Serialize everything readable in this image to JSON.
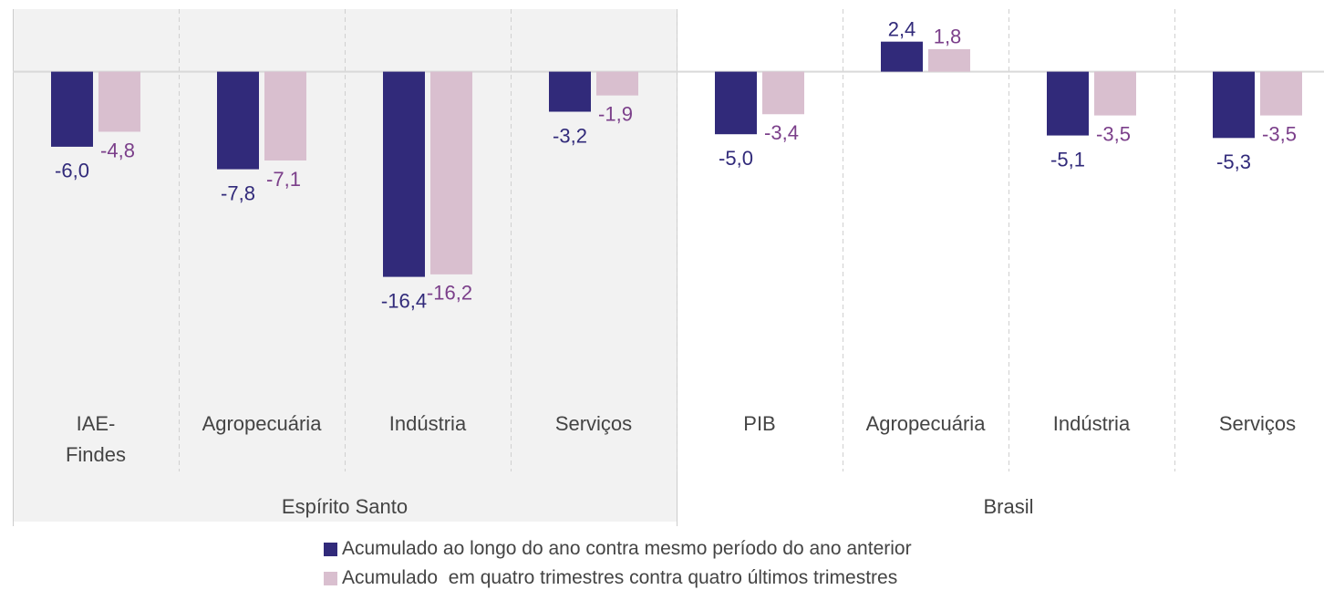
{
  "chart_data": {
    "type": "bar",
    "groups": [
      {
        "name": "Espírito Santo",
        "background": "#f2f2f2",
        "categories": [
          "IAE-Findes",
          "Agropecuária",
          "Indústria",
          "Serviços"
        ]
      },
      {
        "name": "Brasil",
        "categories": [
          "PIB",
          "Agropecuária",
          "Indústria",
          "Serviços"
        ]
      }
    ],
    "series": [
      {
        "name": "Acumulado ao longo do ano contra mesmo período do ano anterior",
        "color": "#312a7a",
        "label_color": "#312a7a",
        "values": [
          -6.0,
          -7.8,
          -16.4,
          -3.2,
          -5.0,
          2.4,
          -5.1,
          -5.3
        ],
        "value_labels": [
          "-6,0",
          "-7,8",
          "-16,4",
          "-3,2",
          "-5,0",
          "2,4",
          "-5,1",
          "-5,3"
        ]
      },
      {
        "name": "Acumulado  em quatro trimestres contra quatro últimos trimestres",
        "color": "#d9bfcf",
        "label_color": "#7b3f8a",
        "values": [
          -4.8,
          -7.1,
          -16.2,
          -1.9,
          -3.4,
          1.8,
          -3.5,
          -3.5
        ],
        "value_labels": [
          "-4,8",
          "-7,1",
          "-16,2",
          "-1,9",
          "-3,4",
          "1,8",
          "-3,5",
          "-3,5"
        ]
      }
    ],
    "ylim": [
      -20,
      5
    ]
  }
}
